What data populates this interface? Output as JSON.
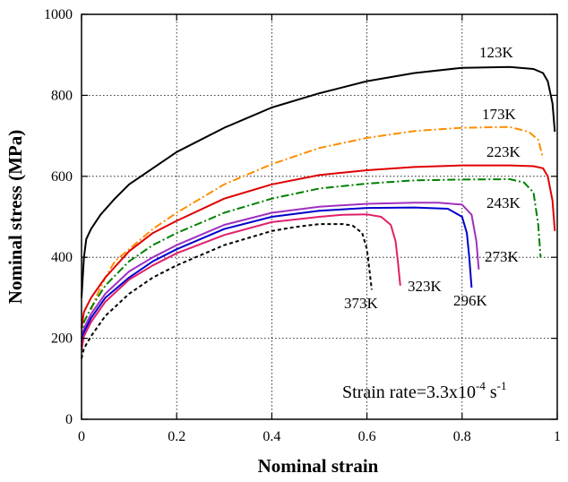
{
  "chart_data": {
    "type": "line",
    "xlabel": "Nominal strain",
    "ylabel": "Nominal stress (MPa)",
    "xlim": [
      0,
      1
    ],
    "ylim": [
      0,
      1000
    ],
    "x_ticks": [
      "0",
      "0.2",
      "0.4",
      "0.6",
      "0.8",
      "1"
    ],
    "y_ticks": [
      "0",
      "200",
      "400",
      "600",
      "800",
      "1000"
    ],
    "x_tick_values": [
      0,
      0.2,
      0.4,
      0.6,
      0.8,
      1.0
    ],
    "y_tick_values": [
      0,
      200,
      400,
      600,
      800,
      1000
    ],
    "grid": true,
    "annotation": {
      "prefix": "Strain rate=3.3x10",
      "exponent1": "-4",
      "mid": " s",
      "exponent2": "-1"
    },
    "series": [
      {
        "name": "123K",
        "color": "#000000",
        "style": "solid",
        "x": [
          0,
          0.005,
          0.01,
          0.02,
          0.04,
          0.07,
          0.1,
          0.15,
          0.2,
          0.3,
          0.4,
          0.5,
          0.6,
          0.7,
          0.8,
          0.9,
          0.95,
          0.97,
          0.98,
          0.99,
          0.995
        ],
        "y": [
          300,
          400,
          445,
          470,
          505,
          545,
          580,
          620,
          660,
          720,
          770,
          805,
          835,
          855,
          868,
          870,
          865,
          855,
          835,
          780,
          710
        ]
      },
      {
        "name": "173K",
        "color": "#ff8c00",
        "style": "dashdot",
        "x": [
          0.02,
          0.03,
          0.05,
          0.07,
          0.1,
          0.15,
          0.2,
          0.3,
          0.4,
          0.5,
          0.6,
          0.7,
          0.8,
          0.9,
          0.94,
          0.96,
          0.97
        ],
        "y": [
          270,
          300,
          350,
          390,
          420,
          470,
          510,
          580,
          630,
          670,
          695,
          712,
          720,
          722,
          710,
          690,
          645
        ]
      },
      {
        "name": "223K",
        "color": "#e00000",
        "style": "solid",
        "x": [
          0,
          0.005,
          0.02,
          0.05,
          0.1,
          0.15,
          0.2,
          0.3,
          0.4,
          0.5,
          0.6,
          0.7,
          0.8,
          0.9,
          0.95,
          0.97,
          0.98,
          0.99,
          0.995
        ],
        "y": [
          225,
          265,
          300,
          350,
          415,
          460,
          490,
          545,
          580,
          603,
          615,
          623,
          627,
          627,
          625,
          620,
          600,
          540,
          465
        ]
      },
      {
        "name": "243K",
        "color": "#008000",
        "style": "dashdot",
        "x": [
          0,
          0.005,
          0.02,
          0.05,
          0.1,
          0.15,
          0.2,
          0.3,
          0.4,
          0.5,
          0.6,
          0.7,
          0.8,
          0.9,
          0.93,
          0.95,
          0.96,
          0.965
        ],
        "y": [
          200,
          240,
          275,
          330,
          390,
          430,
          460,
          510,
          545,
          570,
          582,
          590,
          592,
          593,
          585,
          560,
          480,
          400
        ]
      },
      {
        "name": "273K",
        "color": "#a030c0",
        "style": "solid",
        "x": [
          0,
          0.005,
          0.02,
          0.05,
          0.1,
          0.15,
          0.2,
          0.3,
          0.4,
          0.5,
          0.6,
          0.7,
          0.75,
          0.8,
          0.82,
          0.83,
          0.835
        ],
        "y": [
          190,
          225,
          260,
          310,
          365,
          400,
          430,
          480,
          510,
          525,
          532,
          535,
          535,
          530,
          505,
          440,
          370
        ]
      },
      {
        "name": "296K",
        "color": "#0000cc",
        "style": "solid",
        "x": [
          0,
          0.005,
          0.02,
          0.05,
          0.1,
          0.15,
          0.2,
          0.3,
          0.4,
          0.5,
          0.6,
          0.7,
          0.77,
          0.8,
          0.81,
          0.815,
          0.82
        ],
        "y": [
          180,
          215,
          250,
          300,
          350,
          390,
          420,
          470,
          500,
          515,
          522,
          523,
          520,
          500,
          460,
          400,
          325
        ]
      },
      {
        "name": "323K",
        "color": "#e0206a",
        "style": "solid",
        "x": [
          0,
          0.005,
          0.02,
          0.05,
          0.1,
          0.15,
          0.2,
          0.3,
          0.4,
          0.5,
          0.55,
          0.6,
          0.63,
          0.65,
          0.66,
          0.665,
          0.67
        ],
        "y": [
          170,
          205,
          240,
          290,
          345,
          380,
          410,
          455,
          487,
          500,
          505,
          506,
          500,
          480,
          440,
          390,
          330
        ]
      },
      {
        "name": "373K",
        "color": "#000000",
        "style": "dashed",
        "x": [
          0,
          0.005,
          0.02,
          0.05,
          0.1,
          0.15,
          0.2,
          0.3,
          0.4,
          0.45,
          0.5,
          0.55,
          0.57,
          0.59,
          0.6,
          0.605,
          0.61
        ],
        "y": [
          150,
          175,
          205,
          255,
          310,
          350,
          380,
          430,
          465,
          475,
          482,
          482,
          478,
          460,
          420,
          370,
          320
        ]
      }
    ]
  }
}
